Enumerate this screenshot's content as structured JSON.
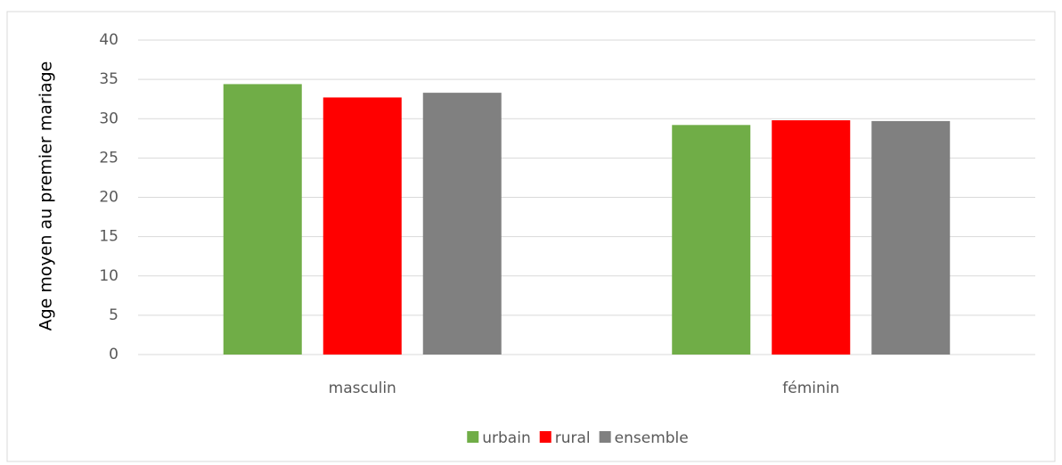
{
  "chart_data": {
    "type": "bar",
    "y_label": "Age moyen au premier mariage",
    "categories": [
      "masculin",
      "féminin"
    ],
    "series": [
      {
        "name": "urbain",
        "color": "#70ad47",
        "values": [
          34.4,
          29.2
        ]
      },
      {
        "name": "rural",
        "color": "#ff0000",
        "values": [
          32.7,
          29.8
        ]
      },
      {
        "name": "ensemble",
        "color": "#808080",
        "values": [
          33.3,
          29.7
        ]
      }
    ],
    "ylim": [
      0,
      40
    ],
    "yticks": [
      0,
      5,
      10,
      15,
      20,
      25,
      30,
      35,
      40
    ],
    "grid": true,
    "legend": "bottom"
  }
}
